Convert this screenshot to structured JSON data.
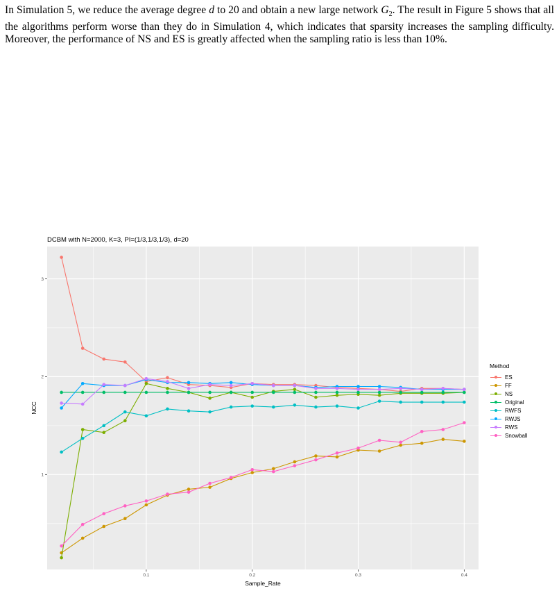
{
  "paragraph": {
    "part1": "In Simulation 5, we reduce the average degree ",
    "var_d": "d",
    "part2": " to 20 and obtain a new large network ",
    "var_g": "G",
    "var_g_sub": "2",
    "part3": ". The result in Figure 5 shows that all the algorithms perform worse than they do in Simulation 4, which indicates that sparsity increases the sampling difficulty. Moreover, the performance of NS and ES is greatly affected when the sampling ratio is less than ",
    "pct": "10%",
    "part4": "."
  },
  "chart_data": {
    "type": "line",
    "title": "DCBM with N=2000, K=3, PI=(1/3,1/3,1/3), d=20",
    "xlabel": "Sample_Rate",
    "ylabel": "NCC",
    "xlim": [
      0.0065,
      0.4135
    ],
    "ylim": [
      0.03,
      3.33
    ],
    "x_ticks": [
      0.1,
      0.2,
      0.3,
      0.4
    ],
    "x_tick_labels": [
      "0.1",
      "0.2",
      "0.3",
      "0.4"
    ],
    "y_ticks": [
      1,
      2,
      3
    ],
    "y_tick_labels": [
      "1",
      "2",
      "3"
    ],
    "grid": true,
    "background": "#ebebeb",
    "legend": {
      "title": "Method",
      "placement": "right"
    },
    "x": [
      0.02,
      0.04,
      0.06,
      0.08,
      0.1,
      0.12,
      0.14,
      0.16,
      0.18,
      0.2,
      0.22,
      0.24,
      0.26,
      0.28,
      0.3,
      0.32,
      0.34,
      0.36,
      0.38,
      0.4
    ],
    "series": [
      {
        "name": "ES",
        "color": "#F8766D",
        "values": [
          3.22,
          2.29,
          2.18,
          2.15,
          1.95,
          1.99,
          1.92,
          1.91,
          1.89,
          1.93,
          1.92,
          1.92,
          1.91,
          1.89,
          1.88,
          1.87,
          1.85,
          1.88,
          1.88,
          1.87
        ]
      },
      {
        "name": "FF",
        "color": "#CD9600",
        "values": [
          0.2,
          0.35,
          0.47,
          0.55,
          0.69,
          0.79,
          0.85,
          0.87,
          0.96,
          1.02,
          1.06,
          1.13,
          1.19,
          1.18,
          1.25,
          1.24,
          1.3,
          1.32,
          1.36,
          1.34
        ]
      },
      {
        "name": "NS",
        "color": "#7CAE00",
        "values": [
          0.15,
          1.46,
          1.43,
          1.55,
          1.93,
          1.88,
          1.84,
          1.78,
          1.84,
          1.79,
          1.85,
          1.87,
          1.79,
          1.81,
          1.82,
          1.81,
          1.83,
          1.83,
          1.83,
          1.84
        ]
      },
      {
        "name": "Original",
        "color": "#00BE67",
        "values": [
          1.84,
          1.84,
          1.84,
          1.84,
          1.84,
          1.84,
          1.84,
          1.84,
          1.84,
          1.84,
          1.84,
          1.84,
          1.84,
          1.84,
          1.84,
          1.84,
          1.84,
          1.84,
          1.84,
          1.84
        ]
      },
      {
        "name": "RWFS",
        "color": "#00BFC4",
        "values": [
          1.23,
          1.37,
          1.5,
          1.64,
          1.6,
          1.67,
          1.65,
          1.64,
          1.69,
          1.7,
          1.69,
          1.71,
          1.69,
          1.7,
          1.68,
          1.75,
          1.74,
          1.74,
          1.74,
          1.74
        ]
      },
      {
        "name": "RWJS",
        "color": "#00A9FF",
        "values": [
          1.68,
          1.93,
          1.91,
          1.91,
          1.97,
          1.94,
          1.94,
          1.93,
          1.94,
          1.92,
          1.91,
          1.91,
          1.89,
          1.9,
          1.9,
          1.9,
          1.89,
          1.87,
          1.87,
          1.87
        ]
      },
      {
        "name": "RWS",
        "color": "#C77CFF",
        "values": [
          1.73,
          1.72,
          1.92,
          1.91,
          1.98,
          1.95,
          1.88,
          1.92,
          1.91,
          1.93,
          1.91,
          1.91,
          1.88,
          1.88,
          1.87,
          1.87,
          1.88,
          1.87,
          1.88,
          1.87
        ]
      },
      {
        "name": "Snowball",
        "color": "#FF61C3",
        "values": [
          0.27,
          0.49,
          0.6,
          0.68,
          0.73,
          0.8,
          0.82,
          0.91,
          0.97,
          1.05,
          1.03,
          1.09,
          1.15,
          1.22,
          1.27,
          1.35,
          1.33,
          1.44,
          1.46,
          1.53
        ]
      }
    ]
  }
}
